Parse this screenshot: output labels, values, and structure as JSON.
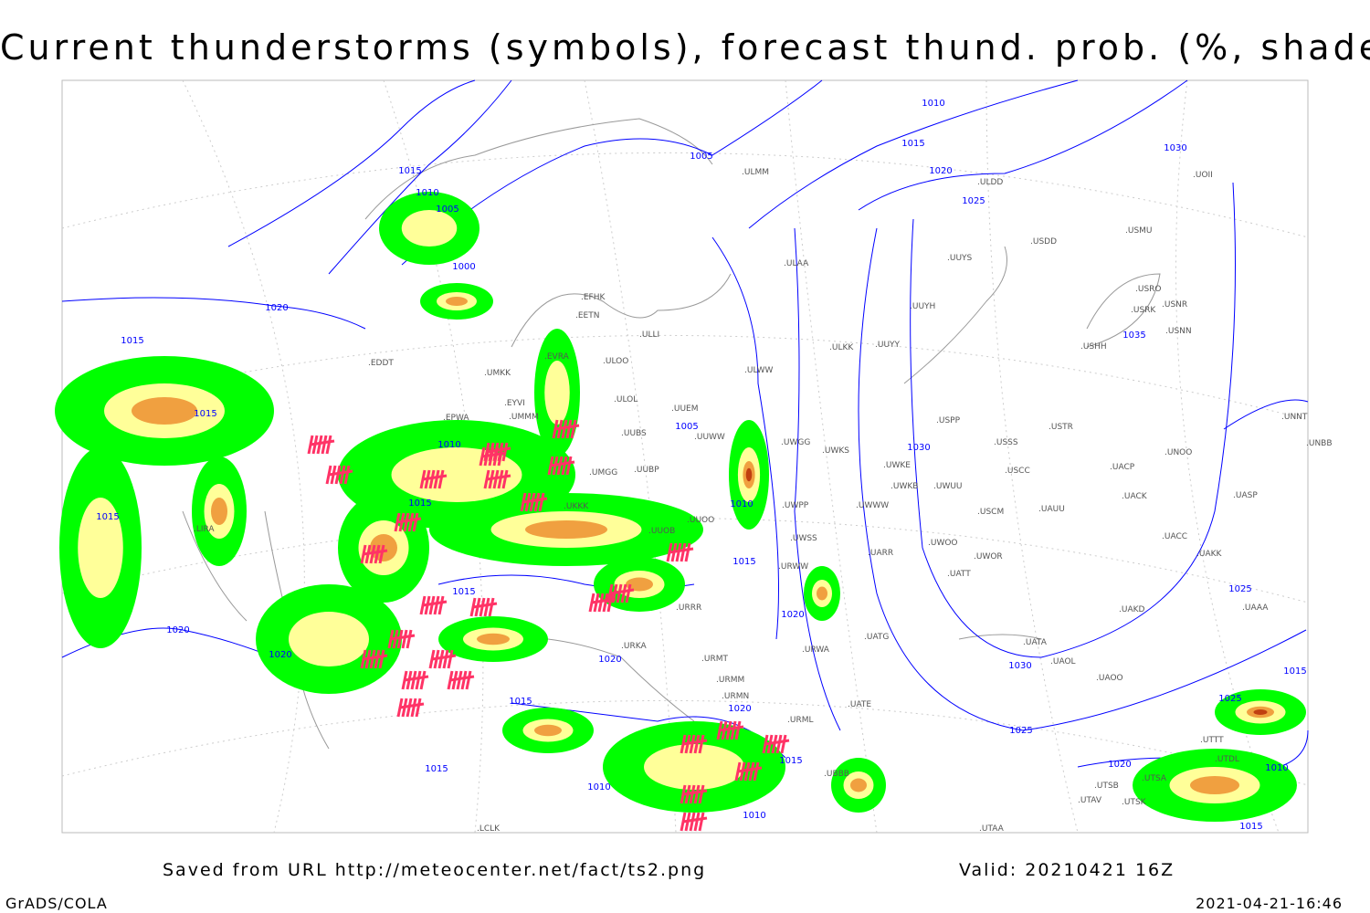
{
  "title": "Current thunderstorms (symbols), forecast thund. prob. (%, shaded)",
  "footer": {
    "source": "Saved from URL http://meteocenter.net/fact/ts2.png",
    "valid": "Valid: 20210421 16Z",
    "software": "GrADS/COLA",
    "timestamp": "2021-04-21-16:46"
  },
  "map": {
    "colors": {
      "isobar": "#0000ff",
      "coast": "#999999",
      "prob_low": "#00ff00",
      "prob_mid": "#ffff99",
      "prob_high": "#f0a040",
      "prob_max": "#c04010",
      "storm_symbol": "#ff3366"
    },
    "isobar_labels": [
      "1010",
      "1015",
      "1020",
      "1025",
      "1030",
      "1005",
      "1015",
      "1010",
      "1005",
      "1000",
      "1020",
      "1015",
      "1015",
      "1005",
      "1010",
      "1030",
      "1015",
      "1010",
      "1015",
      "1015",
      "1015",
      "1020",
      "1020",
      "1020",
      "1020",
      "1030",
      "1025",
      "1015",
      "1020",
      "1025",
      "1025",
      "1015",
      "1015",
      "1010",
      "1020",
      "1010",
      "1010",
      "1015",
      "1035",
      "1015"
    ],
    "station_labels": [
      "ULMM",
      "ULDD",
      "USDD",
      "USMU",
      "UUYS",
      "ULAA",
      "UOII",
      "USRO",
      "USRK",
      "USNR",
      "USNN",
      "USHH",
      "UUYH",
      "ULKK",
      "UUYY",
      "ULWW",
      "EFHK",
      "EETN",
      "ULLI",
      "EVRA",
      "ULOO",
      "UMKK",
      "EDDT",
      "EYVI",
      "ULOL",
      "UUEM",
      "UMMM",
      "EPWA",
      "UUBS",
      "UUWW",
      "UWGG",
      "UWKS",
      "UWKE",
      "UWKB",
      "UWUU",
      "USPP",
      "USSS",
      "USTR",
      "USCC",
      "UACP",
      "UNOO",
      "UNNT",
      "UNBB",
      "UASP",
      "UACK",
      "UAUU",
      "USCM",
      "UWWW",
      "UWPP",
      "UUOO",
      "UUBP",
      "UMGG",
      "UKKK",
      "UUOB",
      "UWSS",
      "UARR",
      "UWOO",
      "UWOR",
      "UATT",
      "UACC",
      "UAKK",
      "UAKD",
      "UAAA",
      "URWW",
      "URRR",
      "URKA",
      "URWA",
      "UATG",
      "UATA",
      "UAOL",
      "UAOO",
      "URMT",
      "URMM",
      "URMN",
      "URML",
      "UATE",
      "UTTT",
      "UTDL",
      "UTSA",
      "UTSB",
      "UTAV",
      "UTSK",
      "UTAA",
      "UBBB",
      "LCLK",
      "LIRA"
    ]
  }
}
